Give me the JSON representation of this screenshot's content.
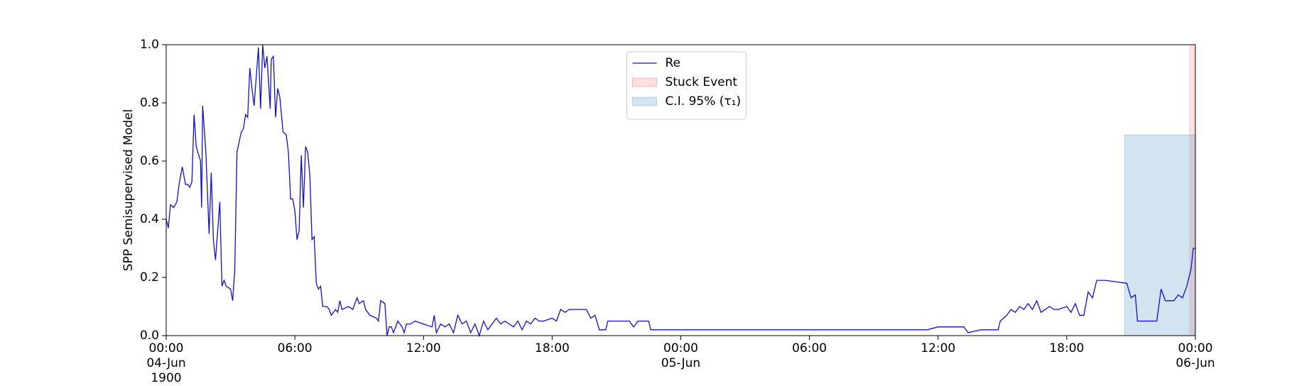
{
  "chart_data": {
    "type": "line",
    "ylabel": "SPP Semisupervised Model",
    "x": [
      0,
      0.1,
      0.2,
      0.35,
      0.5,
      0.6,
      0.75,
      0.9,
      1.0,
      1.1,
      1.2,
      1.3,
      1.4,
      1.6,
      1.65,
      1.7,
      1.85,
      2.0,
      2.1,
      2.2,
      2.3,
      2.5,
      2.6,
      2.7,
      2.8,
      3.0,
      3.1,
      3.2,
      3.3,
      3.5,
      3.6,
      3.7,
      3.8,
      3.9,
      4.0,
      4.1,
      4.3,
      4.4,
      4.5,
      4.6,
      4.7,
      4.85,
      4.9,
      5.0,
      5.1,
      5.2,
      5.3,
      5.45,
      5.6,
      5.7,
      5.8,
      5.9,
      6.0,
      6.1,
      6.2,
      6.3,
      6.4,
      6.5,
      6.6,
      6.7,
      6.8,
      6.9,
      7.0,
      7.1,
      7.2,
      7.3,
      7.5,
      7.6,
      7.7,
      7.9,
      8.0,
      8.1,
      8.2,
      8.5,
      8.7,
      8.9,
      9.0,
      9.2,
      9.3,
      9.5,
      9.8,
      9.9,
      10.0,
      10.2,
      10.3,
      10.4,
      10.5,
      10.6,
      10.8,
      11.0,
      11.1,
      11.2,
      11.4,
      11.6,
      12.0,
      12.4,
      12.5,
      12.6,
      12.8,
      13.0,
      13.2,
      13.4,
      13.6,
      13.8,
      14.0,
      14.2,
      14.4,
      14.6,
      14.8,
      15.0,
      15.2,
      15.4,
      15.6,
      15.8,
      16.2,
      16.4,
      16.6,
      16.8,
      17.0,
      17.2,
      17.4,
      17.6,
      18.0,
      18.2,
      18.4,
      18.6,
      18.8,
      19.6,
      19.8,
      20.0,
      20.2,
      20.5,
      20.6,
      21.6,
      21.8,
      22.0,
      22.5,
      22.6,
      24,
      35.5,
      36,
      37.2,
      37.4,
      38.0,
      38.8,
      38.9,
      39.2,
      39.4,
      39.6,
      39.8,
      40.0,
      40.2,
      40.4,
      40.6,
      40.8,
      41.2,
      41.4,
      41.6,
      42.0,
      42.2,
      42.4,
      42.6,
      42.8,
      43.0,
      43.2,
      43.4,
      43.8,
      44.8,
      45.0,
      45.2,
      45.3,
      46.2,
      46.4,
      46.6,
      47.0,
      47.2,
      47.4,
      47.6,
      47.8,
      47.9,
      48
    ],
    "series": [
      {
        "name": "Re",
        "color": "#1010cc",
        "values": [
          0.4,
          0.37,
          0.45,
          0.44,
          0.46,
          0.52,
          0.58,
          0.52,
          0.52,
          0.51,
          0.53,
          0.76,
          0.65,
          0.6,
          0.44,
          0.79,
          0.63,
          0.35,
          0.56,
          0.33,
          0.26,
          0.46,
          0.17,
          0.19,
          0.17,
          0.16,
          0.12,
          0.23,
          0.63,
          0.7,
          0.71,
          0.76,
          0.75,
          0.92,
          0.85,
          0.79,
          0.99,
          0.78,
          1.0,
          0.92,
          0.96,
          0.78,
          0.95,
          0.96,
          0.75,
          0.85,
          0.82,
          0.7,
          0.69,
          0.63,
          0.47,
          0.47,
          0.43,
          0.33,
          0.36,
          0.62,
          0.44,
          0.65,
          0.63,
          0.55,
          0.33,
          0.34,
          0.18,
          0.16,
          0.17,
          0.1,
          0.1,
          0.09,
          0.07,
          0.09,
          0.08,
          0.12,
          0.09,
          0.1,
          0.09,
          0.13,
          0.11,
          0.12,
          0.09,
          0.07,
          0.06,
          0.05,
          0.12,
          0.11,
          0.0,
          0.03,
          0.03,
          0.01,
          0.05,
          0.03,
          0.01,
          0.04,
          0.04,
          0.05,
          0.04,
          0.03,
          0.07,
          0.01,
          0.04,
          0.03,
          0.04,
          0.01,
          0.07,
          0.04,
          0.05,
          0.01,
          0.04,
          0.0,
          0.05,
          0.02,
          0.04,
          0.06,
          0.04,
          0.05,
          0.03,
          0.05,
          0.02,
          0.05,
          0.04,
          0.06,
          0.05,
          0.05,
          0.06,
          0.05,
          0.09,
          0.08,
          0.09,
          0.09,
          0.06,
          0.07,
          0.02,
          0.02,
          0.05,
          0.05,
          0.03,
          0.05,
          0.05,
          0.02,
          0.02,
          0.02,
          0.03,
          0.03,
          0.01,
          0.02,
          0.02,
          0.05,
          0.07,
          0.09,
          0.08,
          0.1,
          0.09,
          0.11,
          0.09,
          0.12,
          0.08,
          0.1,
          0.09,
          0.09,
          0.1,
          0.08,
          0.11,
          0.07,
          0.07,
          0.15,
          0.13,
          0.19,
          0.19,
          0.18,
          0.13,
          0.14,
          0.05,
          0.05,
          0.16,
          0.12,
          0.12,
          0.14,
          0.13,
          0.17,
          0.23,
          0.3,
          0.3
        ]
      }
    ],
    "spans": [
      {
        "name": "Stuck Event",
        "color": "#ff0000",
        "xrange": [
          47.7,
          48
        ]
      },
      {
        "name": "C.I. 95% (τ₁)",
        "color": "#1f77b4",
        "xrange": [
          44.7,
          48
        ],
        "yrange": [
          0,
          0.69
        ]
      }
    ],
    "xlim": [
      0,
      48
    ],
    "xticks": [
      {
        "value": 0,
        "label": "00:00\n04-Jun\n1900"
      },
      {
        "value": 6,
        "label": "06:00"
      },
      {
        "value": 12,
        "label": "12:00"
      },
      {
        "value": 18,
        "label": "18:00"
      },
      {
        "value": 24,
        "label": "00:00\n05-Jun"
      },
      {
        "value": 30,
        "label": "06:00"
      },
      {
        "value": 36,
        "label": "12:00"
      },
      {
        "value": 42,
        "label": "18:00"
      },
      {
        "value": 48,
        "label": "00:00\n06-Jun"
      }
    ],
    "ylim": [
      0,
      1
    ],
    "yticks": [
      {
        "value": 0,
        "label": "0.0"
      },
      0.2,
      0.4,
      0.6,
      0.8,
      {
        "value": 1,
        "label": "1.0"
      }
    ],
    "legend": "upper center"
  }
}
